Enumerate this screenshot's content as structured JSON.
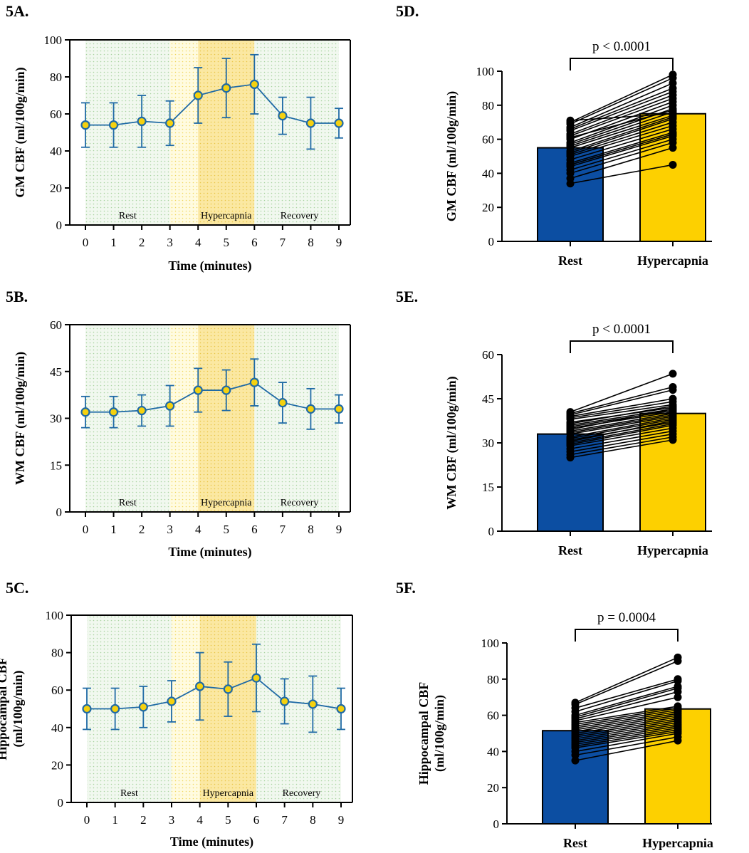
{
  "colors": {
    "line": "#1f6aa5",
    "marker_fill": "#f5d10f",
    "bar_rest": "#0c4ea2",
    "bar_hyper": "#fdd000",
    "rest_shade": "#e8f3e6",
    "hyper_light": "#fff5c0",
    "hyper_dark": "#fbe7a0",
    "recovery_shade": "#edf4ee"
  },
  "charts": [
    {
      "label": "5A.",
      "type": "line",
      "x": [
        0,
        1,
        2,
        3,
        4,
        5,
        6,
        7,
        8,
        9
      ],
      "y": [
        54,
        54,
        56,
        55,
        70,
        74,
        76,
        59,
        55,
        55
      ],
      "err": [
        12,
        12,
        14,
        12,
        15,
        16,
        16,
        10,
        14,
        8
      ],
      "ylim": [
        0,
        100
      ],
      "yticks": [
        0,
        20,
        40,
        60,
        80,
        100
      ],
      "xlabel": "Time (minutes)",
      "ylabel": [
        "GM CBF (ml/100g/min)"
      ],
      "phases": [
        {
          "label": "Rest",
          "start": 0,
          "end": 3
        },
        {
          "label": "Hypercapnia",
          "start": 3,
          "end": 6
        },
        {
          "label": "Recovery",
          "start": 6,
          "end": 9
        }
      ]
    },
    {
      "label": "5B.",
      "type": "line",
      "x": [
        0,
        1,
        2,
        3,
        4,
        5,
        6,
        7,
        8,
        9
      ],
      "y": [
        32,
        32,
        32.5,
        34,
        39,
        39,
        41.5,
        35,
        33,
        33
      ],
      "err": [
        5,
        5,
        5,
        6.5,
        7,
        6.5,
        7.5,
        6.5,
        6.5,
        4.5
      ],
      "ylim": [
        0,
        60
      ],
      "yticks": [
        0,
        15,
        30,
        45,
        60
      ],
      "xlabel": "Time (minutes)",
      "ylabel": [
        "WM CBF (ml/100g/min)"
      ],
      "phases": [
        {
          "label": "Rest",
          "start": 0,
          "end": 3
        },
        {
          "label": "Hypercapnia",
          "start": 3,
          "end": 6
        },
        {
          "label": "Recovery",
          "start": 6,
          "end": 9
        }
      ]
    },
    {
      "label": "5C.",
      "type": "line",
      "x": [
        0,
        1,
        2,
        3,
        4,
        5,
        6,
        7,
        8,
        9
      ],
      "y": [
        50,
        50,
        51,
        54,
        62,
        60.5,
        66.5,
        54,
        52.5,
        50
      ],
      "err": [
        11,
        11,
        11,
        11,
        18,
        14.5,
        18,
        12,
        15,
        11
      ],
      "ylim": [
        0,
        100
      ],
      "yticks": [
        0,
        20,
        40,
        60,
        80,
        100
      ],
      "xlabel": "Time (minutes)",
      "ylabel": [
        "Hippocampal CBF",
        "(ml/100g/min)"
      ],
      "phases": [
        {
          "label": "Rest",
          "start": 0,
          "end": 3
        },
        {
          "label": "Hypercapnia",
          "start": 3,
          "end": 6
        },
        {
          "label": "Recovery",
          "start": 6,
          "end": 9
        }
      ]
    },
    {
      "label": "5D.",
      "type": "bar",
      "categories": [
        "Rest",
        "Hypercapnia"
      ],
      "values": [
        55,
        75
      ],
      "ylim": [
        0,
        100
      ],
      "yticks": [
        0,
        20,
        40,
        60,
        80,
        100
      ],
      "ylabel": [
        "GM CBF (ml/100g/min)"
      ],
      "pvalue": "p < 0.0001",
      "paired": [
        [
          34,
          45
        ],
        [
          37,
          55
        ],
        [
          40,
          58
        ],
        [
          42,
          60
        ],
        [
          44,
          62
        ],
        [
          45,
          63
        ],
        [
          46,
          64
        ],
        [
          48,
          66
        ],
        [
          50,
          68
        ],
        [
          51,
          70
        ],
        [
          52,
          72
        ],
        [
          53,
          73
        ],
        [
          55,
          74
        ],
        [
          56,
          76
        ],
        [
          57,
          78
        ],
        [
          58,
          80
        ],
        [
          60,
          82
        ],
        [
          62,
          84
        ],
        [
          63,
          86
        ],
        [
          65,
          88
        ],
        [
          66,
          90
        ],
        [
          67,
          93
        ],
        [
          69,
          96
        ],
        [
          70,
          98
        ],
        [
          71,
          75
        ],
        [
          61,
          77
        ]
      ]
    },
    {
      "label": "5E.",
      "type": "bar",
      "categories": [
        "Rest",
        "Hypercapnia"
      ],
      "values": [
        33,
        40
      ],
      "ylim": [
        0,
        60
      ],
      "yticks": [
        0,
        15,
        30,
        45,
        60
      ],
      "ylabel": [
        "WM CBF (ml/100g/min)"
      ],
      "pvalue": "p < 0.0001",
      "paired": [
        [
          25,
          31
        ],
        [
          26,
          32
        ],
        [
          27,
          33
        ],
        [
          28,
          34
        ],
        [
          29,
          35
        ],
        [
          29.5,
          36
        ],
        [
          30,
          36.5
        ],
        [
          31,
          37
        ],
        [
          31.5,
          38
        ],
        [
          32,
          38.5
        ],
        [
          33,
          39
        ],
        [
          33.5,
          39.5
        ],
        [
          34,
          40
        ],
        [
          35,
          40.5
        ],
        [
          35.5,
          41
        ],
        [
          36,
          41.5
        ],
        [
          37,
          42
        ],
        [
          38,
          43
        ],
        [
          38.5,
          44
        ],
        [
          39,
          45
        ],
        [
          39.5,
          48
        ],
        [
          40,
          49
        ],
        [
          40.5,
          53.5
        ],
        [
          36.5,
          42.5
        ],
        [
          34.5,
          41.5
        ],
        [
          30.5,
          37.5
        ]
      ]
    },
    {
      "label": "5F.",
      "type": "bar",
      "categories": [
        "Rest",
        "Hypercapnia"
      ],
      "values": [
        51.5,
        63.5
      ],
      "ylim": [
        0,
        100
      ],
      "yticks": [
        0,
        20,
        40,
        60,
        80,
        100
      ],
      "ylabel": [
        "Hippocampal CBF",
        "(ml/100g/min)"
      ],
      "pvalue": "p = 0.0004",
      "paired": [
        [
          35,
          46
        ],
        [
          38,
          48
        ],
        [
          40,
          50
        ],
        [
          42,
          51
        ],
        [
          43,
          52
        ],
        [
          44,
          53
        ],
        [
          45,
          54
        ],
        [
          46,
          55
        ],
        [
          47,
          56
        ],
        [
          48,
          57
        ],
        [
          49,
          58
        ],
        [
          50,
          59
        ],
        [
          51,
          60
        ],
        [
          52,
          61
        ],
        [
          53,
          62
        ],
        [
          54,
          63
        ],
        [
          55,
          64
        ],
        [
          56,
          65
        ],
        [
          57,
          70
        ],
        [
          58,
          73
        ],
        [
          59,
          75
        ],
        [
          60,
          76
        ],
        [
          62,
          79
        ],
        [
          64,
          80
        ],
        [
          66,
          90
        ],
        [
          67,
          92
        ]
      ]
    }
  ]
}
